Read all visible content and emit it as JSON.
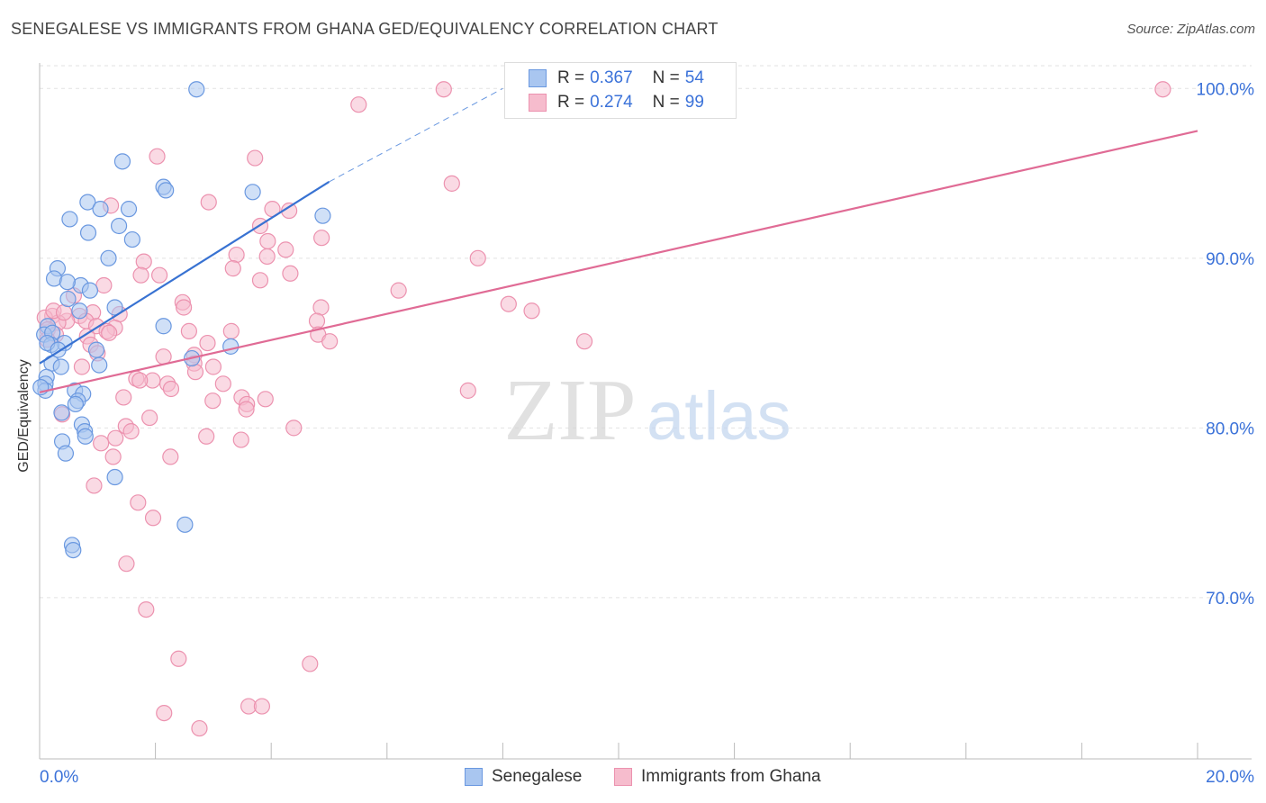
{
  "header": {
    "title": "SENEGALESE VS IMMIGRANTS FROM GHANA GED/EQUIVALENCY CORRELATION CHART",
    "source": "Source: ZipAtlas.com"
  },
  "watermark": {
    "zip": "ZIP",
    "atlas": "atlas"
  },
  "colors": {
    "blue_fill": "#a9c6f0",
    "blue_stroke": "#6a98e0",
    "blue_line": "#3872d2",
    "pink_fill": "#f6bccd",
    "pink_stroke": "#ec92af",
    "pink_line": "#e06b95",
    "tick_label": "#3b72d9",
    "grid": "#e2e2e2"
  },
  "legend": {
    "series": [
      {
        "name": "Senegalese",
        "r_label": "R =",
        "r_value": "0.367",
        "n_label": "N =",
        "n_value": "54"
      },
      {
        "name": "Immigrants from Ghana",
        "r_label": "R =",
        "r_value": "0.274",
        "n_label": "N =",
        "n_value": "99"
      }
    ]
  },
  "chart_data": {
    "type": "scatter",
    "title": "SENEGALESE VS IMMIGRANTS FROM GHANA GED/EQUIVALENCY CORRELATION CHART",
    "xlabel": "",
    "ylabel": "GED/Equivalency",
    "xlim": [
      0,
      20
    ],
    "ylim": [
      60.5,
      101.5
    ],
    "x_tick_labels": [
      "0.0%",
      "20.0%"
    ],
    "y_ticks": [
      70,
      80,
      90,
      100
    ],
    "y_tick_labels": [
      "70.0%",
      "80.0%",
      "90.0%",
      "100.0%"
    ],
    "grid": true,
    "legend_position": "top-center",
    "series": [
      {
        "name": "Senegalese",
        "points": [
          [
            2.71,
            99.95
          ],
          [
            1.43,
            95.7
          ],
          [
            2.14,
            94.2
          ],
          [
            2.18,
            94.0
          ],
          [
            3.68,
            93.9
          ],
          [
            0.83,
            93.3
          ],
          [
            1.05,
            92.9
          ],
          [
            1.54,
            92.9
          ],
          [
            0.52,
            92.3
          ],
          [
            4.89,
            92.5
          ],
          [
            0.84,
            91.5
          ],
          [
            1.37,
            91.9
          ],
          [
            1.6,
            91.1
          ],
          [
            1.19,
            90.0
          ],
          [
            0.31,
            89.4
          ],
          [
            0.25,
            88.8
          ],
          [
            0.71,
            88.4
          ],
          [
            0.48,
            88.6
          ],
          [
            0.87,
            88.1
          ],
          [
            0.49,
            87.6
          ],
          [
            0.69,
            86.9
          ],
          [
            1.3,
            87.1
          ],
          [
            0.14,
            86.0
          ],
          [
            2.14,
            86.0
          ],
          [
            0.08,
            85.5
          ],
          [
            0.22,
            85.6
          ],
          [
            0.43,
            85.0
          ],
          [
            0.2,
            84.9
          ],
          [
            0.13,
            85.0
          ],
          [
            0.32,
            84.6
          ],
          [
            3.3,
            84.8
          ],
          [
            0.98,
            84.6
          ],
          [
            2.63,
            84.1
          ],
          [
            1.03,
            83.7
          ],
          [
            0.21,
            83.8
          ],
          [
            0.37,
            83.6
          ],
          [
            0.12,
            83.0
          ],
          [
            0.1,
            82.6
          ],
          [
            0.1,
            82.2
          ],
          [
            0.61,
            82.2
          ],
          [
            0.75,
            82.0
          ],
          [
            0.66,
            81.6
          ],
          [
            0.62,
            81.4
          ],
          [
            0.38,
            80.9
          ],
          [
            0.73,
            80.2
          ],
          [
            0.78,
            79.8
          ],
          [
            0.79,
            79.5
          ],
          [
            0.39,
            79.2
          ],
          [
            0.45,
            78.5
          ],
          [
            1.3,
            77.1
          ],
          [
            2.51,
            74.3
          ],
          [
            0.56,
            73.1
          ],
          [
            0.58,
            72.8
          ],
          [
            0.02,
            82.4
          ]
        ],
        "trendline": {
          "x": [
            0,
            5.0
          ],
          "y": [
            83.8,
            94.5
          ],
          "extension_x": [
            5.0,
            8.0
          ],
          "extension_y": [
            94.5,
            100.0
          ]
        }
      },
      {
        "name": "Immigrants from Ghana",
        "points": [
          [
            6.98,
            99.95
          ],
          [
            19.4,
            99.95
          ],
          [
            5.51,
            99.05
          ],
          [
            2.03,
            96.0
          ],
          [
            3.72,
            95.9
          ],
          [
            7.12,
            94.4
          ],
          [
            2.92,
            93.3
          ],
          [
            1.23,
            93.1
          ],
          [
            4.02,
            92.9
          ],
          [
            4.31,
            92.8
          ],
          [
            3.81,
            91.9
          ],
          [
            4.87,
            91.2
          ],
          [
            3.94,
            91.0
          ],
          [
            4.25,
            90.5
          ],
          [
            3.4,
            90.2
          ],
          [
            3.93,
            90.1
          ],
          [
            7.57,
            90.0
          ],
          [
            1.8,
            89.8
          ],
          [
            3.34,
            89.4
          ],
          [
            2.07,
            89.0
          ],
          [
            1.75,
            89.0
          ],
          [
            4.33,
            89.1
          ],
          [
            3.81,
            88.7
          ],
          [
            1.11,
            88.4
          ],
          [
            6.2,
            88.1
          ],
          [
            0.59,
            87.8
          ],
          [
            2.47,
            87.4
          ],
          [
            8.1,
            87.3
          ],
          [
            8.5,
            86.9
          ],
          [
            2.49,
            87.1
          ],
          [
            4.86,
            87.1
          ],
          [
            0.69,
            86.6
          ],
          [
            0.92,
            86.8
          ],
          [
            1.38,
            86.7
          ],
          [
            0.22,
            86.6
          ],
          [
            0.09,
            86.5
          ],
          [
            0.47,
            86.3
          ],
          [
            0.8,
            86.3
          ],
          [
            4.79,
            86.3
          ],
          [
            0.32,
            86.2
          ],
          [
            0.98,
            86.0
          ],
          [
            1.3,
            85.9
          ],
          [
            0.14,
            85.8
          ],
          [
            3.31,
            85.7
          ],
          [
            1.16,
            85.7
          ],
          [
            2.58,
            85.7
          ],
          [
            0.28,
            85.5
          ],
          [
            0.82,
            85.4
          ],
          [
            4.81,
            85.5
          ],
          [
            0.13,
            85.2
          ],
          [
            5.01,
            85.1
          ],
          [
            9.41,
            85.1
          ],
          [
            0.88,
            84.9
          ],
          [
            1.0,
            84.4
          ],
          [
            2.67,
            84.3
          ],
          [
            2.14,
            84.2
          ],
          [
            2.67,
            83.8
          ],
          [
            3.0,
            83.6
          ],
          [
            0.73,
            83.6
          ],
          [
            2.69,
            83.3
          ],
          [
            1.67,
            82.9
          ],
          [
            1.95,
            82.8
          ],
          [
            1.73,
            82.8
          ],
          [
            2.21,
            82.6
          ],
          [
            3.17,
            82.6
          ],
          [
            2.27,
            82.3
          ],
          [
            7.4,
            82.2
          ],
          [
            1.45,
            81.8
          ],
          [
            3.49,
            81.8
          ],
          [
            3.9,
            81.7
          ],
          [
            2.99,
            81.6
          ],
          [
            3.58,
            81.4
          ],
          [
            3.57,
            81.1
          ],
          [
            0.39,
            80.8
          ],
          [
            1.9,
            80.6
          ],
          [
            1.49,
            80.1
          ],
          [
            1.58,
            79.8
          ],
          [
            4.39,
            80.0
          ],
          [
            2.88,
            79.5
          ],
          [
            1.31,
            79.4
          ],
          [
            3.48,
            79.3
          ],
          [
            1.06,
            79.1
          ],
          [
            1.27,
            78.3
          ],
          [
            2.26,
            78.3
          ],
          [
            0.94,
            76.6
          ],
          [
            1.7,
            75.6
          ],
          [
            1.96,
            74.7
          ],
          [
            1.5,
            72.0
          ],
          [
            1.84,
            69.3
          ],
          [
            2.4,
            66.4
          ],
          [
            4.67,
            66.1
          ],
          [
            3.61,
            63.6
          ],
          [
            3.84,
            63.6
          ],
          [
            2.15,
            63.2
          ],
          [
            2.76,
            62.3
          ],
          [
            0.24,
            86.9
          ],
          [
            0.42,
            86.8
          ],
          [
            1.2,
            85.6
          ],
          [
            2.9,
            85.0
          ]
        ],
        "trendline": {
          "x": [
            0,
            20
          ],
          "y": [
            82.1,
            97.5
          ]
        }
      }
    ]
  }
}
